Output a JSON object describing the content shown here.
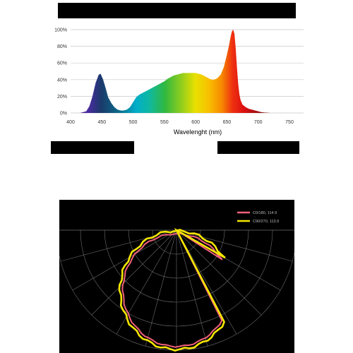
{
  "chart_data": [
    {
      "type": "area",
      "xlabel": "Wavelenght (nm)",
      "ylabel": "",
      "xlim": [
        400,
        750
      ],
      "ylim": [
        0,
        100
      ],
      "x_ticks": [
        "400",
        "450",
        "500",
        "550",
        "600",
        "650",
        "700",
        "750"
      ],
      "y_ticks": [
        "0%",
        "20%",
        "40%",
        "60%",
        "80%",
        "100%"
      ],
      "grid": true,
      "fill": "wavelength-rainbow",
      "series": [
        {
          "x": [
            415,
            425,
            430,
            435,
            440,
            445,
            448,
            452,
            456,
            460,
            465,
            470,
            475,
            480,
            485,
            490,
            495,
            500,
            505,
            510,
            515,
            520,
            525,
            530,
            535,
            540,
            545,
            550,
            555,
            560,
            565,
            570,
            575,
            580,
            585,
            590,
            595,
            600,
            605,
            610,
            615,
            620,
            625,
            630,
            635,
            640,
            645,
            650,
            653,
            656,
            658,
            660,
            662,
            664,
            666,
            668,
            670,
            672,
            675,
            680,
            685,
            690,
            695,
            700,
            705,
            710,
            720
          ],
          "values": [
            0,
            2,
            8,
            20,
            36,
            46,
            47,
            40,
            30,
            19,
            12,
            7,
            4,
            3,
            3,
            4,
            7,
            13,
            19,
            22,
            24,
            26,
            28,
            30,
            32,
            34,
            36,
            38,
            41,
            43,
            45,
            46,
            47,
            48,
            48,
            48,
            48,
            48,
            47,
            46,
            44,
            42,
            40,
            40,
            42,
            46,
            55,
            70,
            80,
            92,
            98,
            100,
            95,
            78,
            55,
            35,
            22,
            15,
            10,
            7,
            5,
            4,
            3,
            2,
            1,
            0.5,
            0
          ]
        }
      ]
    },
    {
      "type": "polar",
      "grid": true,
      "legend": "top-right",
      "series": [
        {
          "name": "C0/180, 114.9",
          "color": "#f0607a"
        },
        {
          "name": "C90/270, 113.9",
          "color": "#f5e600"
        }
      ]
    }
  ]
}
